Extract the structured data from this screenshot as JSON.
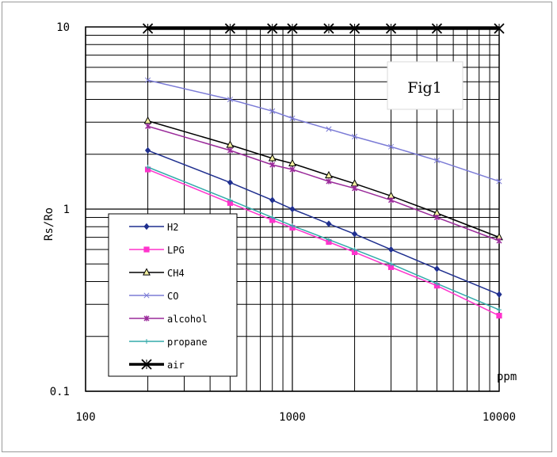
{
  "chart_data": {
    "type": "line",
    "title": "",
    "annotation": "Fig1",
    "xlabel": "ppm",
    "ylabel": "Rs/Ro",
    "xscale": "log",
    "yscale": "log",
    "xlim": [
      100,
      10000
    ],
    "ylim": [
      0.1,
      10
    ],
    "x_tick_labels": [
      "100",
      "1000",
      "10000"
    ],
    "y_tick_labels": [
      "0.1",
      "1",
      "10"
    ],
    "grid": true,
    "legend_position": "bottom-left",
    "x": [
      200,
      500,
      800,
      1000,
      1500,
      2000,
      3000,
      5000,
      10000
    ],
    "series": [
      {
        "name": "H2",
        "color": "#1f2f8f",
        "marker": "diamond",
        "values": [
          2.1,
          1.4,
          1.12,
          1.0,
          0.83,
          0.73,
          0.6,
          0.47,
          0.34
        ]
      },
      {
        "name": "LPG",
        "color": "#ff33cc",
        "marker": "square",
        "values": [
          1.65,
          1.08,
          0.87,
          0.79,
          0.66,
          0.58,
          0.48,
          0.38,
          0.26
        ]
      },
      {
        "name": "CH4",
        "color": "#000000",
        "marker": "triangle",
        "values": [
          3.05,
          2.25,
          1.9,
          1.78,
          1.53,
          1.38,
          1.18,
          0.95,
          0.7
        ]
      },
      {
        "name": "CO",
        "color": "#7b7bd6",
        "marker": "x",
        "values": [
          5.1,
          4.0,
          3.45,
          3.15,
          2.75,
          2.5,
          2.2,
          1.85,
          1.42
        ]
      },
      {
        "name": "alcohol",
        "color": "#9a2a9a",
        "marker": "star",
        "values": [
          2.85,
          2.1,
          1.75,
          1.65,
          1.42,
          1.3,
          1.12,
          0.9,
          0.67
        ]
      },
      {
        "name": "propane",
        "color": "#33aaaa",
        "marker": "plus",
        "values": [
          1.7,
          1.12,
          0.9,
          0.81,
          0.68,
          0.6,
          0.5,
          0.39,
          0.28
        ]
      },
      {
        "name": "air",
        "color": "#000000",
        "marker": "x-bold",
        "values": [
          9.8,
          9.8,
          9.8,
          9.8,
          9.8,
          9.8,
          9.8,
          9.8,
          9.8
        ]
      }
    ]
  }
}
